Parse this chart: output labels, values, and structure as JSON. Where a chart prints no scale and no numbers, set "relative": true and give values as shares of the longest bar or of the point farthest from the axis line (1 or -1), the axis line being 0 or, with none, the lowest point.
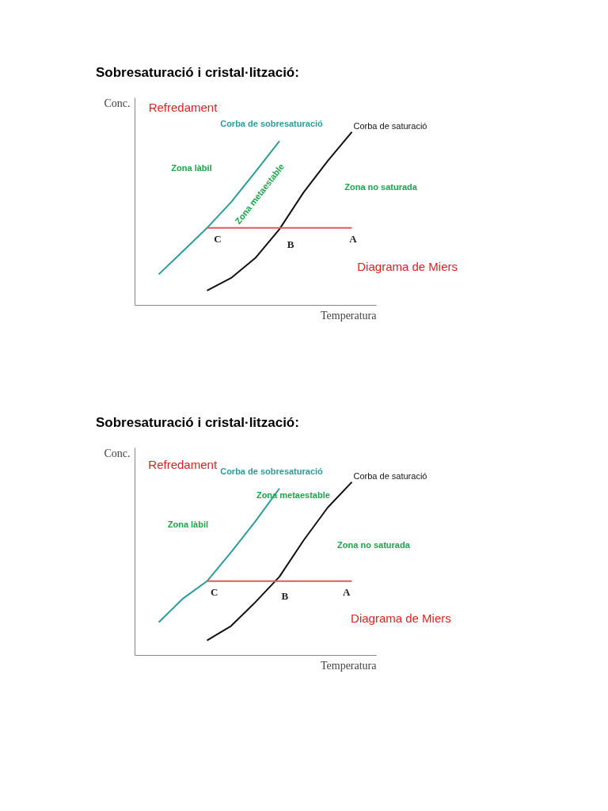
{
  "chart_data": [
    {
      "type": "line",
      "title": "Sobresaturació i cristal·lització:",
      "xlabel": "Temperatura",
      "ylabel": "Conc.",
      "relative": true,
      "grid": false,
      "legend": false,
      "marker": "none",
      "categories": [
        null,
        null,
        null,
        null,
        null,
        null,
        null,
        null,
        null,
        null,
        null
      ],
      "series": [
        {
          "name": "Corba de sobresaturació",
          "color": "#2a9d9a",
          "values": [
            null,
            0.177,
            0.31,
            0.445,
            0.595,
            0.769,
            0.948,
            null,
            null,
            null,
            null
          ]
        },
        {
          "name": "Corba de saturació",
          "color": "#111111",
          "values": [
            null,
            null,
            null,
            0.083,
            0.156,
            0.271,
            0.438,
            0.651,
            0.833,
            1,
            null
          ]
        },
        {
          "color": "#e05a5a",
          "values": [
            null,
            null,
            null,
            0.445,
            0.445,
            0.445,
            0.445,
            0.445,
            0.445,
            0.445,
            null
          ]
        }
      ],
      "annotations": [
        "Refredament",
        "Zona làbil",
        "Zona metaestable",
        "Zona no saturada",
        "C",
        "B",
        "A",
        "Diagrama de Miers"
      ]
    },
    {
      "type": "line",
      "title": "Sobresaturació  i cristal·lització:",
      "xlabel": "Temperatura",
      "ylabel": "Conc.",
      "relative": true,
      "grid": false,
      "legend": false,
      "marker": "none",
      "categories": [
        null,
        null,
        null,
        null,
        null,
        null,
        null,
        null,
        null,
        null,
        null
      ],
      "series": [
        {
          "name": "Corba de sobresaturació",
          "color": "#2a9d9a",
          "values": [
            null,
            0.189,
            0.326,
            0.427,
            0.595,
            0.772,
            0.963,
            null,
            null,
            null,
            null
          ]
        },
        {
          "name": "Corba de saturació",
          "color": "#111111",
          "values": [
            null,
            null,
            null,
            0.084,
            0.168,
            0.305,
            0.453,
            0.663,
            0.853,
            1,
            null
          ]
        },
        {
          "color": "#e05a5a",
          "values": [
            null,
            null,
            null,
            0.427,
            0.427,
            0.427,
            0.427,
            0.427,
            0.427,
            0.427,
            null
          ]
        }
      ],
      "annotations": [
        "Refredament",
        "Zona làbil",
        "Zona metaestable",
        "Zona no saturada",
        "C",
        "B",
        "A",
        "Diagrama de Miers"
      ]
    }
  ]
}
